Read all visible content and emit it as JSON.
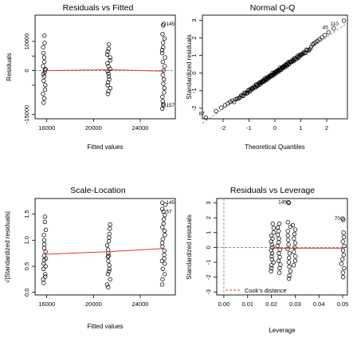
{
  "colors": {
    "points": "#000000",
    "smooth": "#e8332a",
    "reference": "#7a7a7a",
    "cooks": "#e8332a"
  },
  "chart_data": [
    {
      "type": "scatter",
      "title": "Residuals vs Fitted",
      "xlabel": "Fitted values",
      "ylabel": "Residuals",
      "xlim": [
        15000,
        27000
      ],
      "ylim": [
        -16500,
        19000
      ],
      "xticks": [
        16000,
        20000,
        24000
      ],
      "yticks": [
        -15000,
        -5000,
        0,
        5000,
        10000
      ],
      "ytick_labels": [
        "-15000",
        "",
        "0",
        "",
        "10000"
      ],
      "zero_line": true,
      "groups": [
        {
          "x": 15800,
          "y": [
            12000,
            9500,
            8000,
            6000,
            4500,
            3000,
            1500,
            500,
            -500,
            -2000,
            -3500,
            -5000,
            -6500,
            -8000,
            -9500,
            -11000,
            200,
            -1200
          ]
        },
        {
          "x": 21300,
          "y": [
            9000,
            7500,
            6500,
            5500,
            4500,
            3500,
            2500,
            1500,
            600,
            -200,
            -1000,
            -2000,
            -3000,
            -4000,
            -5000,
            -6000,
            -7000,
            -8000
          ]
        },
        {
          "x": 26000,
          "y": [
            16000,
            15500,
            12500,
            11000,
            9500,
            8000,
            6000,
            4500,
            3000,
            1500,
            0,
            -1500,
            -3000,
            -4500,
            -6000,
            -7500,
            -9000,
            -10500,
            -12000,
            -13000,
            7000,
            -11500
          ]
        }
      ],
      "smooth": {
        "x": [
          15800,
          21300,
          26000
        ],
        "y": [
          0,
          300,
          -200
        ]
      },
      "annotations": [
        {
          "text": "145",
          "x": 26000,
          "y": 16000
        },
        {
          "text": "157",
          "x": 26000,
          "y": -11800
        }
      ]
    },
    {
      "type": "scatter",
      "title": "Normal Q-Q",
      "xlabel": "Theoretical Quantiles",
      "ylabel": "Standardized residuals",
      "xlim": [
        -2.8,
        2.8
      ],
      "ylim": [
        -2.6,
        3.3
      ],
      "xticks": [
        -2,
        -1,
        0,
        1,
        2
      ],
      "yticks": [
        -2,
        -1,
        0,
        1,
        2,
        3
      ],
      "n_points": 130,
      "reference_line": {
        "intercept": 0,
        "slope": 1.02
      },
      "annotations": [
        {
          "text": "87",
          "x": -2.65,
          "y": -2.3
        },
        {
          "text": "45",
          "x": 2.15,
          "y": 2.6
        },
        {
          "text": "110",
          "x": 2.55,
          "y": 2.8
        }
      ]
    },
    {
      "type": "scatter",
      "title": "Scale-Location",
      "xlabel": "Fitted values",
      "ylabel": "√|Standardized residuals|",
      "xlim": [
        15000,
        27000
      ],
      "ylim": [
        -0.05,
        1.8
      ],
      "xticks": [
        16000,
        20000,
        24000
      ],
      "yticks": [
        0.0,
        0.5,
        1.0,
        1.5
      ],
      "ytick_labels": [
        "0.0",
        "0.5",
        "1.0",
        "1.5"
      ],
      "groups": [
        {
          "x": 15800,
          "y": [
            1.45,
            1.35,
            1.2,
            1.1,
            1.0,
            0.92,
            0.85,
            0.78,
            0.7,
            0.62,
            0.55,
            0.45,
            0.35,
            0.25,
            0.18,
            0.3,
            0.5,
            0.65
          ]
        },
        {
          "x": 21300,
          "y": [
            1.3,
            1.22,
            1.12,
            1.05,
            0.98,
            0.9,
            0.82,
            0.75,
            0.68,
            0.6,
            0.52,
            0.45,
            0.35,
            0.25,
            0.15,
            0.1,
            0.4,
            0.7
          ]
        },
        {
          "x": 26000,
          "y": [
            1.72,
            1.68,
            1.55,
            1.48,
            1.4,
            1.32,
            1.25,
            1.18,
            1.1,
            1.02,
            0.95,
            0.88,
            0.8,
            0.72,
            0.65,
            0.55,
            0.45,
            0.35,
            0.25,
            0.15,
            1.6,
            0.6
          ]
        }
      ],
      "smooth": {
        "x": [
          15800,
          21300,
          26000
        ],
        "y": [
          0.73,
          0.78,
          0.84
        ]
      },
      "annotations": [
        {
          "text": "145",
          "x": 26000,
          "y": 1.72
        },
        {
          "text": "57",
          "x": 26000,
          "y": 1.55
        }
      ]
    },
    {
      "type": "scatter",
      "title": "Residuals vs Leverage",
      "xlabel": "Leverage",
      "ylabel": "Standardized residuals",
      "xlim": [
        -0.003,
        0.052
      ],
      "ylim": [
        -3.2,
        3.3
      ],
      "xticks": [
        0.0,
        0.01,
        0.02,
        0.03,
        0.04,
        0.05
      ],
      "xtick_labels": [
        "0.00",
        "0.01",
        "0.02",
        "0.03",
        "0.04",
        "0.05"
      ],
      "yticks": [
        -3,
        -2,
        -1,
        0,
        1,
        2,
        3
      ],
      "zero_line": true,
      "groups": [
        {
          "x": 0.0205,
          "y": [
            1.6,
            1.3,
            1.0,
            0.8,
            0.6,
            0.4,
            0.2,
            0.0,
            -0.2,
            -0.4,
            -0.6,
            -0.8,
            -1.0,
            -1.2,
            -1.4,
            -1.6
          ]
        },
        {
          "x": 0.0232,
          "y": [
            1.6,
            1.35,
            1.1,
            0.85,
            0.6,
            0.35,
            0.1,
            -0.15,
            -0.4,
            -0.65,
            -0.9,
            -1.15,
            -1.4,
            -1.7
          ]
        },
        {
          "x": 0.0275,
          "y": [
            3.05,
            3.0,
            1.7,
            1.4,
            1.1,
            0.8,
            0.5,
            0.2,
            -0.1,
            -0.4,
            -0.7,
            -1.0,
            -1.3,
            -1.6,
            -1.9,
            -2.1
          ]
        },
        {
          "x": 0.0295,
          "y": [
            1.5,
            1.2,
            0.9,
            0.6,
            0.3,
            0.0,
            -0.3,
            -0.6,
            -0.9,
            -1.2
          ]
        },
        {
          "x": 0.05,
          "y": [
            1.95,
            1.85,
            1.0,
            0.7,
            0.4,
            0.1,
            -0.2,
            -0.5,
            -0.8,
            -1.1,
            -1.4,
            -1.7,
            -2.0
          ]
        }
      ],
      "smooth": {
        "x": [
          0.0205,
          0.05
        ],
        "y": [
          -0.05,
          -0.05
        ]
      },
      "legend": {
        "label": "Cook's distance",
        "position": "bottom-left"
      },
      "annotations": [
        {
          "text": "145",
          "x": 0.0275,
          "y": 3.05
        },
        {
          "text": "70",
          "x": 0.05,
          "y": 1.95
        }
      ]
    }
  ]
}
